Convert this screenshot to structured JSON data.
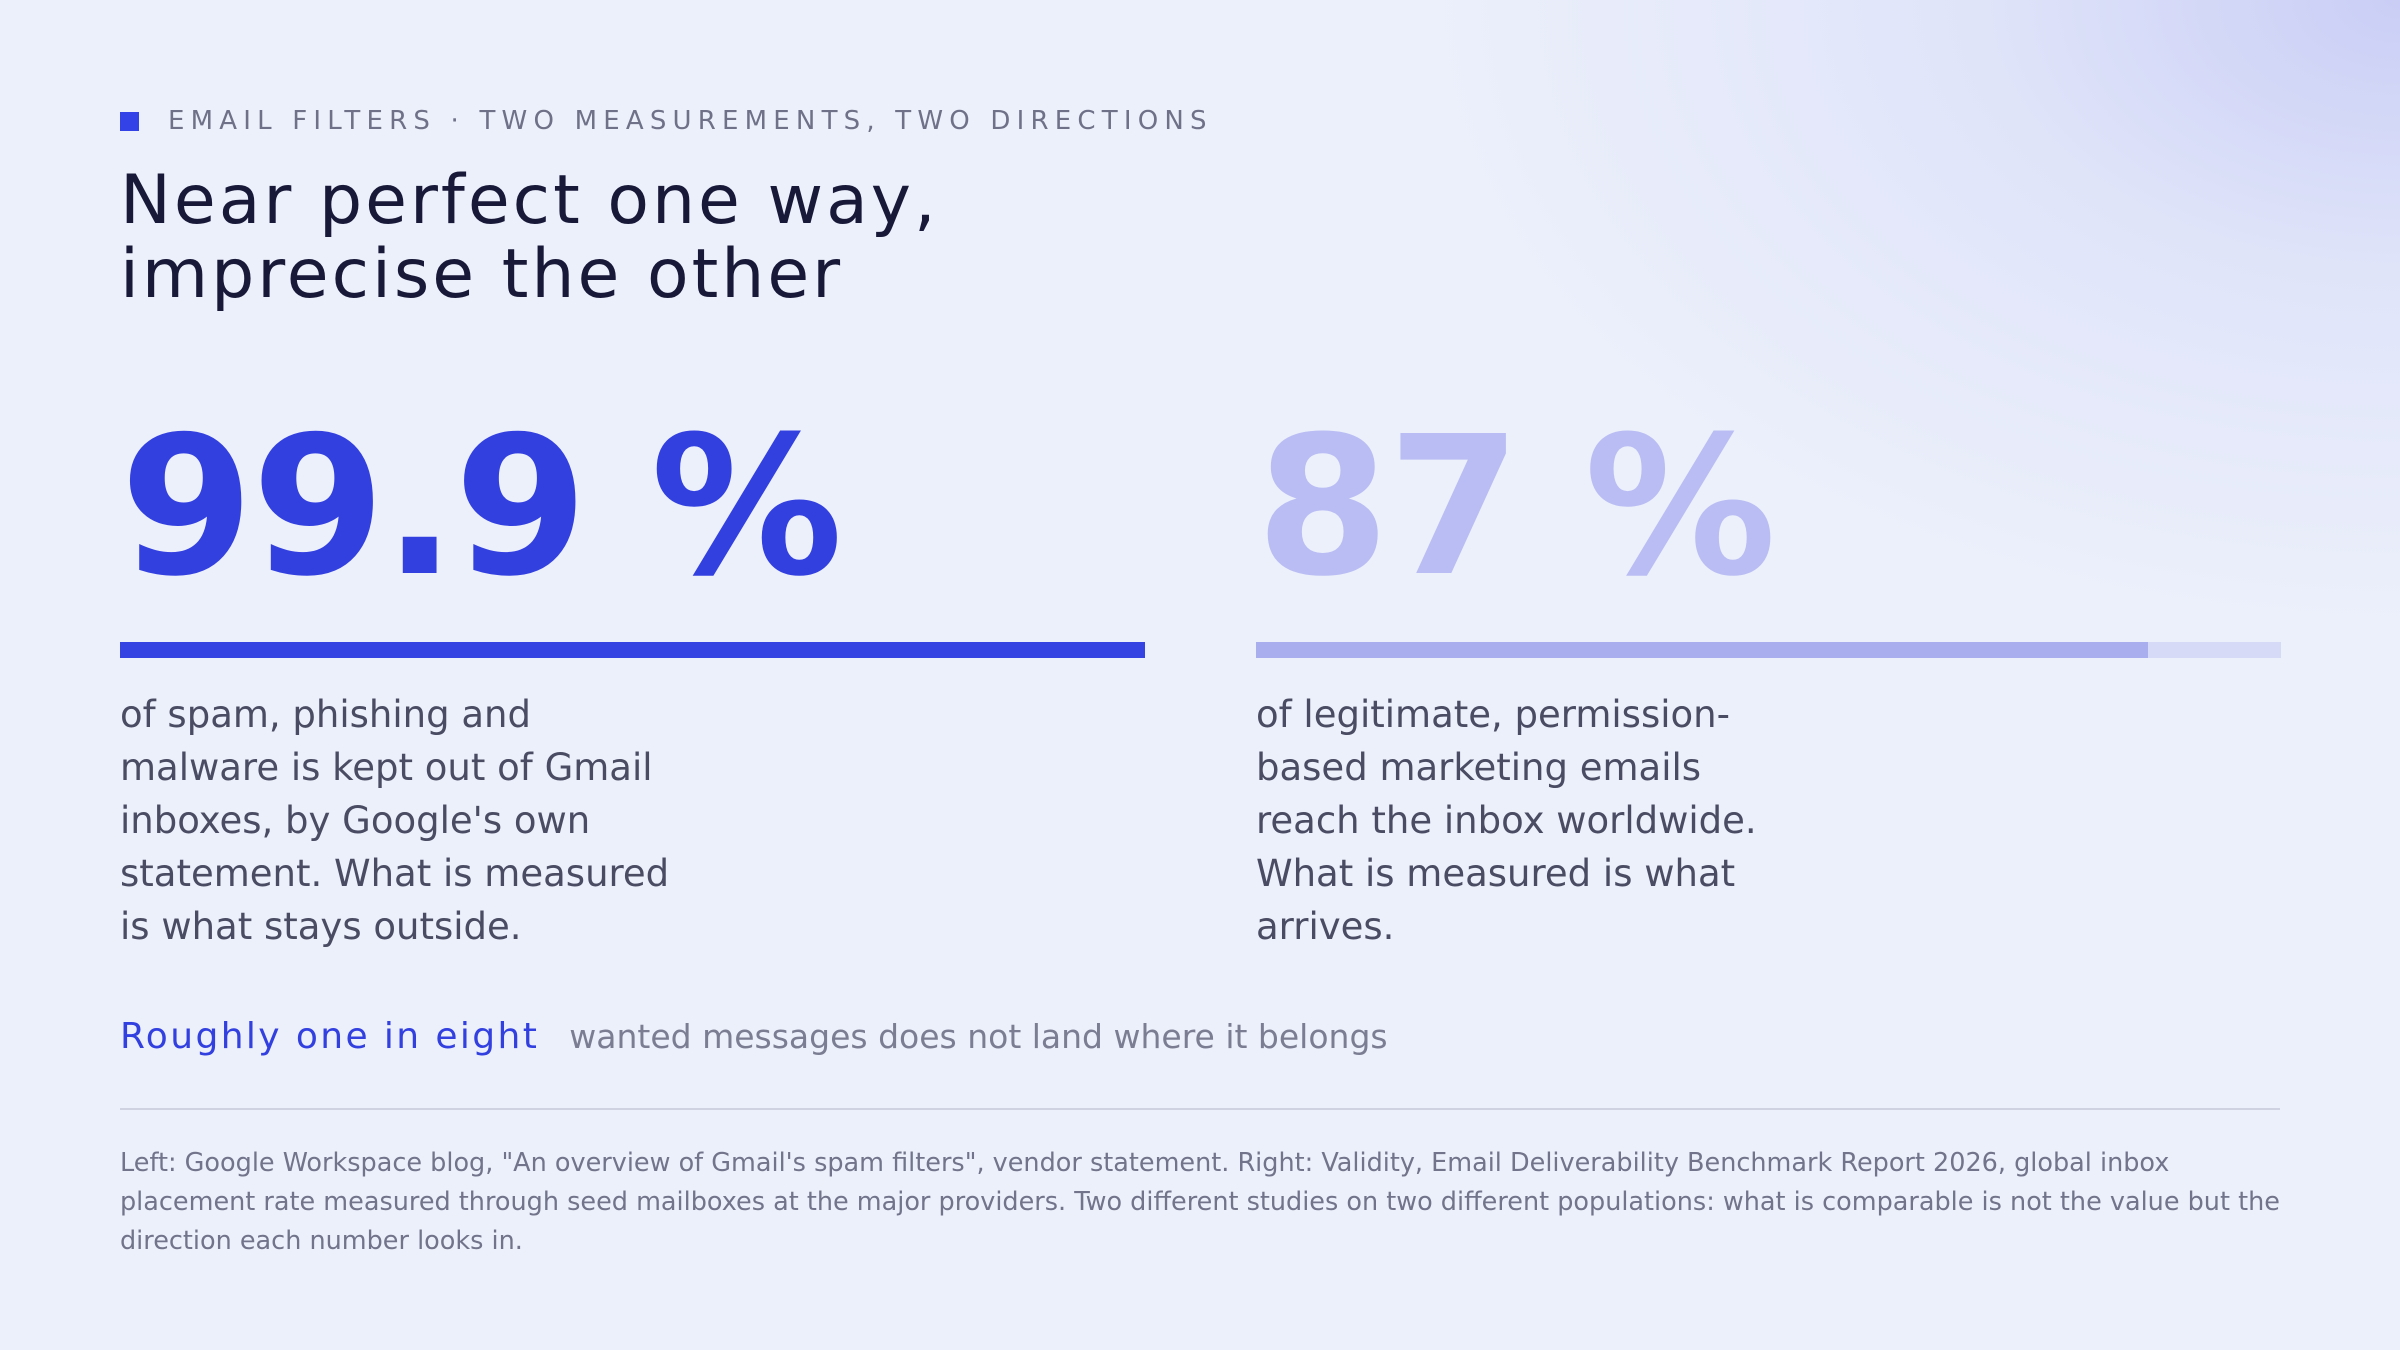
{
  "eyebrow": {
    "text": "EMAIL FILTERS · TWO MEASUREMENTS, TWO DIRECTIONS",
    "marker_color": "#3342e6"
  },
  "title": {
    "line1": "Near perfect one way,",
    "line2": "imprecise the other"
  },
  "stats": [
    {
      "value": "99.9 %",
      "fill_percent": 100,
      "color": "#3340e0",
      "description": "of spam, phishing and malware is kept out of Gmail inboxes, by Google's own statement. What is measured is what stays outside."
    },
    {
      "value": "87 %",
      "fill_percent": 87,
      "color": "#b9bdf3",
      "description": "of legitimate, permission-based marketing emails reach the inbox worldwide. What is measured is what arrives."
    }
  ],
  "callout": {
    "strong": "Roughly one in eight",
    "rest": "wanted messages does not land where it belongs"
  },
  "footnote": "Left: Google Workspace blog, \"An overview of Gmail's spam filters\", vendor statement. Right: Validity, Email Deliverability Benchmark Report 2026, global inbox placement rate measured through seed mailboxes at the major providers. Two different studies on two different populations: what is comparable is not the value but the direction each number looks in."
}
